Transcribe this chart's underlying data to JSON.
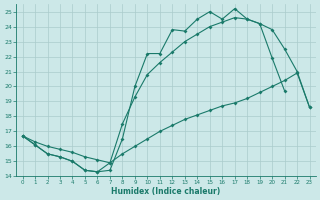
{
  "xlabel": "Humidex (Indice chaleur)",
  "xlim": [
    -0.5,
    23.5
  ],
  "ylim": [
    14,
    25.5
  ],
  "yticks": [
    14,
    15,
    16,
    17,
    18,
    19,
    20,
    21,
    22,
    23,
    24,
    25
  ],
  "xticks": [
    0,
    1,
    2,
    3,
    4,
    5,
    6,
    7,
    8,
    9,
    10,
    11,
    12,
    13,
    14,
    15,
    16,
    17,
    18,
    19,
    20,
    21,
    22,
    23
  ],
  "bg_color": "#cce8e8",
  "grid_color": "#aacccc",
  "line_color": "#1a7a6a",
  "line1_x": [
    0,
    1,
    2,
    3,
    4,
    5,
    6,
    7,
    8,
    9,
    10,
    11,
    12,
    13,
    14,
    15,
    16,
    17,
    18,
    19,
    20,
    21
  ],
  "line1_y": [
    16.7,
    16.1,
    15.5,
    15.3,
    15.0,
    14.4,
    14.3,
    14.4,
    16.5,
    20.0,
    22.2,
    22.2,
    23.8,
    23.7,
    24.5,
    25.0,
    24.5,
    25.2,
    24.5,
    24.2,
    21.9,
    19.7
  ],
  "line2_x": [
    0,
    1,
    2,
    3,
    4,
    5,
    6,
    7,
    8,
    9,
    10,
    11,
    12,
    13,
    14,
    15,
    16,
    17,
    18,
    19,
    20,
    21,
    22,
    23
  ],
  "line2_y": [
    16.7,
    16.3,
    16.0,
    15.8,
    15.6,
    15.3,
    15.1,
    14.9,
    15.5,
    16.0,
    16.5,
    17.0,
    17.4,
    17.8,
    18.1,
    18.4,
    18.7,
    18.9,
    19.2,
    19.6,
    20.0,
    20.4,
    20.9,
    18.6
  ],
  "line3_x": [
    0,
    1,
    2,
    3,
    4,
    5,
    6,
    7,
    8,
    9,
    10,
    11,
    12,
    13,
    14,
    15,
    16,
    17,
    18,
    19,
    20,
    21,
    22,
    23
  ],
  "line3_y": [
    16.7,
    16.1,
    15.5,
    15.3,
    15.0,
    14.4,
    14.3,
    14.9,
    17.5,
    19.3,
    20.8,
    21.6,
    22.3,
    23.0,
    23.5,
    24.0,
    24.3,
    24.6,
    24.5,
    24.2,
    23.8,
    22.5,
    21.0,
    18.6
  ]
}
